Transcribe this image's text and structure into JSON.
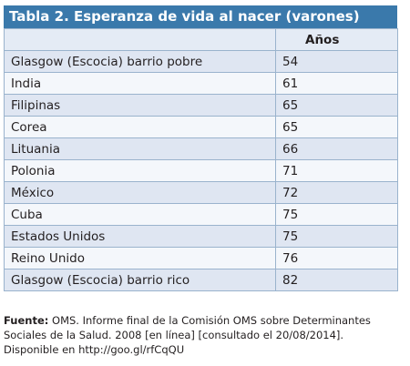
{
  "table": {
    "title": "Tabla 2. Esperanza de vida al nacer (varones)",
    "header": {
      "label": "",
      "value": "Años"
    },
    "rows": [
      {
        "country": "Glasgow (Escocia) barrio pobre",
        "years": "54"
      },
      {
        "country": "India",
        "years": "61"
      },
      {
        "country": "Filipinas",
        "years": "65"
      },
      {
        "country": "Corea",
        "years": "65"
      },
      {
        "country": "Lituania",
        "years": "66"
      },
      {
        "country": "Polonia",
        "years": "71"
      },
      {
        "country": "México",
        "years": "72"
      },
      {
        "country": "Cuba",
        "years": "75"
      },
      {
        "country": "Estados Unidos",
        "years": "75"
      },
      {
        "country": "Reino Unido",
        "years": "76"
      },
      {
        "country": "Glasgow (Escocia) barrio rico",
        "years": "82"
      }
    ]
  },
  "source": {
    "label": "Fuente:",
    "text": " OMS. Informe final de la Comisión OMS sobre Determinantes Sociales de la Salud. 2008 [en línea] [consultado el 20/08/2014]. Disponible en http://goo.gl/rfCqQU"
  },
  "colors": {
    "title_background": "#3a79ab",
    "header_background": "#e4ebf5",
    "row_light": "#f4f7fb",
    "row_dark": "#dfe6f2",
    "border": "#9ab3cd"
  }
}
